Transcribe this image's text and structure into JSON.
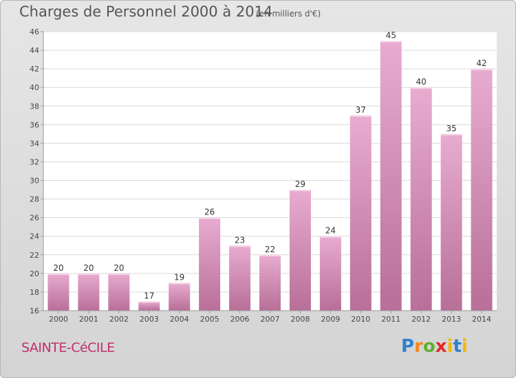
{
  "header": {
    "title": "Charges de Personnel 2000 à 2014",
    "subtitle": "(en milliers d'€)"
  },
  "footer": {
    "commune": "SAINTE-CéCILE",
    "logo_text": "Proxiti"
  },
  "colors": {
    "bar_top": "#e8acd0",
    "bar_bottom": "#b86f98",
    "plot_background": "#ffffff",
    "grid": "#d9d9d9",
    "commune_text": "#c0306a"
  },
  "chart_data": {
    "type": "bar",
    "title": "Charges de Personnel 2000 à 2014",
    "xlabel": "",
    "ylabel": "",
    "categories": [
      "2000",
      "2001",
      "2002",
      "2003",
      "2004",
      "2005",
      "2006",
      "2007",
      "2008",
      "2009",
      "2010",
      "2011",
      "2012",
      "2013",
      "2014"
    ],
    "values": [
      20,
      20,
      20,
      17,
      19,
      26,
      23,
      22,
      29,
      24,
      37,
      45,
      40,
      35,
      42
    ],
    "ylim": [
      16,
      46
    ],
    "yticks": [
      16,
      18,
      20,
      22,
      24,
      26,
      28,
      30,
      32,
      34,
      36,
      38,
      40,
      42,
      44,
      46
    ],
    "grid": true,
    "data_labels": true
  }
}
